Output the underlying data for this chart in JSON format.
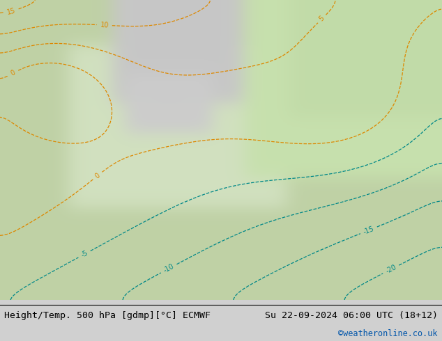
{
  "title_left": "Height/Temp. 500 hPa [gdmp][°C] ECMWF",
  "title_right": "Su 22-09-2024 06:00 UTC (18+12)",
  "credit": "©weatheronline.co.uk",
  "bg_color": "#d0d0d0",
  "map_bg_color": "#c8c8c8",
  "land_color": "#b8c8a0",
  "sea_color": "#c8d8c0",
  "fig_width": 6.34,
  "fig_height": 4.9,
  "bottom_bar_color": "#e8e8e8",
  "title_fontsize": 9.5,
  "credit_color": "#0055aa"
}
